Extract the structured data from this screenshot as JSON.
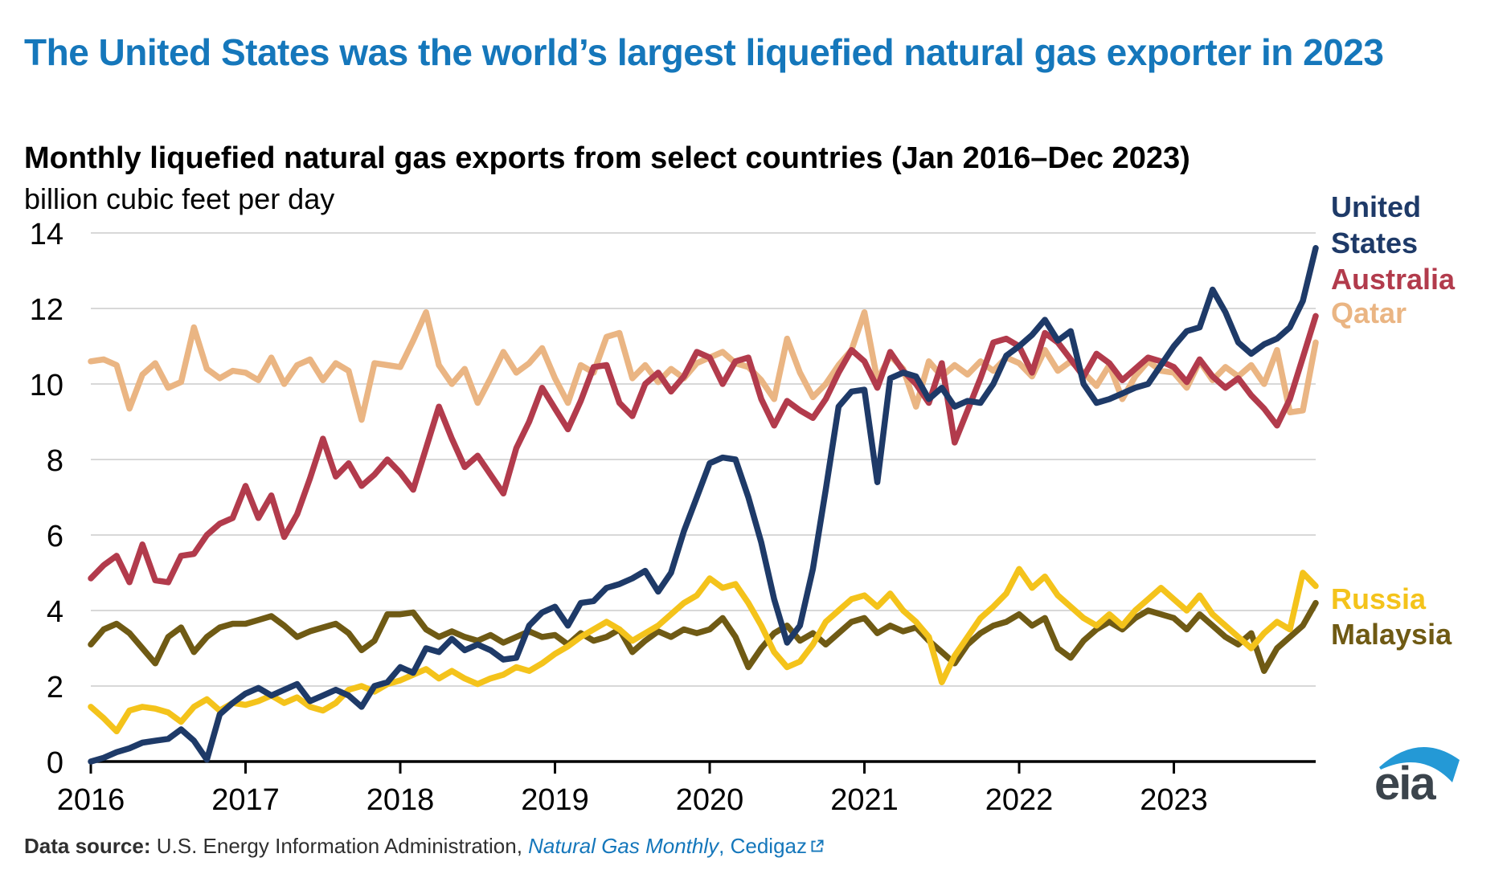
{
  "header": {
    "title": "The United States was the world’s largest liquefied natural gas exporter in 2023"
  },
  "chart_data": {
    "type": "line",
    "title": "Monthly liquefied natural gas exports from select countries (Jan 2016–Dec 2023)",
    "ylabel": "billion cubic feet per day",
    "ylim": [
      0,
      14
    ],
    "yticks": [
      0,
      2,
      4,
      6,
      8,
      10,
      12,
      14
    ],
    "x_tick_labels": [
      "2016",
      "2017",
      "2018",
      "2019",
      "2020",
      "2021",
      "2022",
      "2023"
    ],
    "frequency": "monthly",
    "grid": "horizontal",
    "legend_position": "right-of-line-ends",
    "series": [
      {
        "name": "Qatar",
        "color": "#eab583",
        "values": [
          10.6,
          10.65,
          10.5,
          9.35,
          10.25,
          10.55,
          9.9,
          10.05,
          11.5,
          10.4,
          10.15,
          10.35,
          10.3,
          10.1,
          10.7,
          10.0,
          10.5,
          10.65,
          10.1,
          10.55,
          10.35,
          9.05,
          10.55,
          10.5,
          10.45,
          11.15,
          11.9,
          10.5,
          10.0,
          10.4,
          9.5,
          10.15,
          10.85,
          10.3,
          10.55,
          10.95,
          10.15,
          9.5,
          10.5,
          10.3,
          11.25,
          11.35,
          10.15,
          10.5,
          10.05,
          10.4,
          10.15,
          10.55,
          10.7,
          10.85,
          10.55,
          10.45,
          10.1,
          9.6,
          11.2,
          10.3,
          9.65,
          10.0,
          10.5,
          10.9,
          11.9,
          10.1,
          10.75,
          10.4,
          9.4,
          10.6,
          10.2,
          10.5,
          10.25,
          10.6,
          10.35,
          10.7,
          10.55,
          10.2,
          10.9,
          10.35,
          10.6,
          10.3,
          9.95,
          10.5,
          9.6,
          10.2,
          10.6,
          10.35,
          10.3,
          9.9,
          10.6,
          10.1,
          10.45,
          10.2,
          10.5,
          10.0,
          10.9,
          9.25,
          9.3,
          11.1
        ]
      },
      {
        "name": "Malaysia",
        "color": "#6f5a14",
        "values": [
          3.1,
          3.5,
          3.65,
          3.4,
          3.0,
          2.6,
          3.3,
          3.55,
          2.9,
          3.3,
          3.55,
          3.65,
          3.65,
          3.75,
          3.85,
          3.6,
          3.3,
          3.45,
          3.55,
          3.65,
          3.4,
          2.95,
          3.2,
          3.9,
          3.9,
          3.95,
          3.5,
          3.3,
          3.45,
          3.3,
          3.2,
          3.35,
          3.15,
          3.3,
          3.45,
          3.3,
          3.35,
          3.1,
          3.4,
          3.2,
          3.3,
          3.5,
          2.9,
          3.2,
          3.45,
          3.3,
          3.5,
          3.4,
          3.5,
          3.8,
          3.3,
          2.5,
          3.0,
          3.4,
          3.6,
          3.2,
          3.4,
          3.1,
          3.4,
          3.7,
          3.8,
          3.4,
          3.6,
          3.45,
          3.55,
          3.2,
          2.9,
          2.6,
          3.1,
          3.4,
          3.6,
          3.7,
          3.9,
          3.6,
          3.8,
          3.0,
          2.75,
          3.2,
          3.5,
          3.7,
          3.5,
          3.8,
          4.0,
          3.9,
          3.8,
          3.5,
          3.9,
          3.6,
          3.3,
          3.1,
          3.4,
          2.4,
          3.0,
          3.3,
          3.6,
          4.2
        ]
      },
      {
        "name": "Russia",
        "color": "#f4c31b",
        "values": [
          1.45,
          1.15,
          0.8,
          1.35,
          1.45,
          1.4,
          1.3,
          1.05,
          1.45,
          1.65,
          1.35,
          1.55,
          1.5,
          1.6,
          1.75,
          1.55,
          1.7,
          1.45,
          1.35,
          1.55,
          1.9,
          2.0,
          1.85,
          2.05,
          2.15,
          2.3,
          2.45,
          2.2,
          2.4,
          2.2,
          2.05,
          2.2,
          2.3,
          2.5,
          2.4,
          2.6,
          2.85,
          3.05,
          3.3,
          3.5,
          3.7,
          3.5,
          3.2,
          3.4,
          3.6,
          3.9,
          4.2,
          4.4,
          4.85,
          4.6,
          4.7,
          4.2,
          3.6,
          2.9,
          2.5,
          2.65,
          3.1,
          3.7,
          4.0,
          4.3,
          4.4,
          4.1,
          4.45,
          4.0,
          3.7,
          3.3,
          2.1,
          2.8,
          3.3,
          3.8,
          4.1,
          4.45,
          5.1,
          4.6,
          4.9,
          4.4,
          4.1,
          3.8,
          3.6,
          3.9,
          3.6,
          4.0,
          4.3,
          4.6,
          4.3,
          4.0,
          4.4,
          3.9,
          3.6,
          3.3,
          3.0,
          3.4,
          3.7,
          3.5,
          5.0,
          4.65
        ]
      },
      {
        "name": "Australia",
        "color": "#b23b4c",
        "values": [
          4.85,
          5.2,
          5.45,
          4.75,
          5.75,
          4.8,
          4.75,
          5.45,
          5.5,
          6.0,
          6.3,
          6.45,
          7.3,
          6.45,
          7.05,
          5.95,
          6.55,
          7.5,
          8.55,
          7.55,
          7.9,
          7.3,
          7.6,
          8.0,
          7.65,
          7.2,
          8.3,
          9.4,
          8.55,
          7.8,
          8.1,
          7.6,
          7.1,
          8.3,
          9.0,
          9.9,
          9.35,
          8.8,
          9.55,
          10.45,
          10.5,
          9.5,
          9.15,
          10.0,
          10.3,
          9.8,
          10.2,
          10.85,
          10.7,
          10.0,
          10.6,
          10.7,
          9.6,
          8.9,
          9.55,
          9.3,
          9.1,
          9.6,
          10.3,
          10.9,
          10.6,
          9.9,
          10.85,
          10.35,
          10.0,
          9.5,
          10.55,
          8.45,
          9.3,
          10.15,
          11.1,
          11.2,
          11.0,
          10.3,
          11.35,
          11.1,
          10.65,
          10.2,
          10.8,
          10.55,
          10.1,
          10.4,
          10.7,
          10.6,
          10.45,
          10.05,
          10.65,
          10.2,
          9.9,
          10.15,
          9.7,
          9.35,
          8.9,
          9.6,
          10.7,
          11.8
        ]
      },
      {
        "name": "United States",
        "color": "#1e3a68",
        "values": [
          0.0,
          0.1,
          0.25,
          0.35,
          0.5,
          0.55,
          0.6,
          0.85,
          0.55,
          0.05,
          1.25,
          1.55,
          1.8,
          1.95,
          1.75,
          1.9,
          2.05,
          1.6,
          1.75,
          1.9,
          1.75,
          1.45,
          2.0,
          2.1,
          2.5,
          2.35,
          3.0,
          2.9,
          3.25,
          2.95,
          3.1,
          2.95,
          2.7,
          2.75,
          3.6,
          3.95,
          4.1,
          3.6,
          4.2,
          4.25,
          4.6,
          4.7,
          4.85,
          5.05,
          4.5,
          5.0,
          6.1,
          7.0,
          7.9,
          8.05,
          8.0,
          7.0,
          5.8,
          4.3,
          3.15,
          3.6,
          5.1,
          7.2,
          9.4,
          9.8,
          9.85,
          7.4,
          10.15,
          10.3,
          10.2,
          9.6,
          9.9,
          9.4,
          9.55,
          9.5,
          10.0,
          10.75,
          11.0,
          11.3,
          11.7,
          11.15,
          11.4,
          10.0,
          9.5,
          9.6,
          9.75,
          9.9,
          10.0,
          10.5,
          11.0,
          11.4,
          11.5,
          12.5,
          11.9,
          11.1,
          10.8,
          11.05,
          11.2,
          11.5,
          12.2,
          13.6
        ]
      }
    ]
  },
  "source": {
    "label": "Data source:",
    "text": " U.S. Energy Information Administration, ",
    "link1": "Natural Gas Monthly",
    "separator": ", ",
    "link2": "Cedigaz"
  },
  "logo": {
    "text": "eia"
  }
}
